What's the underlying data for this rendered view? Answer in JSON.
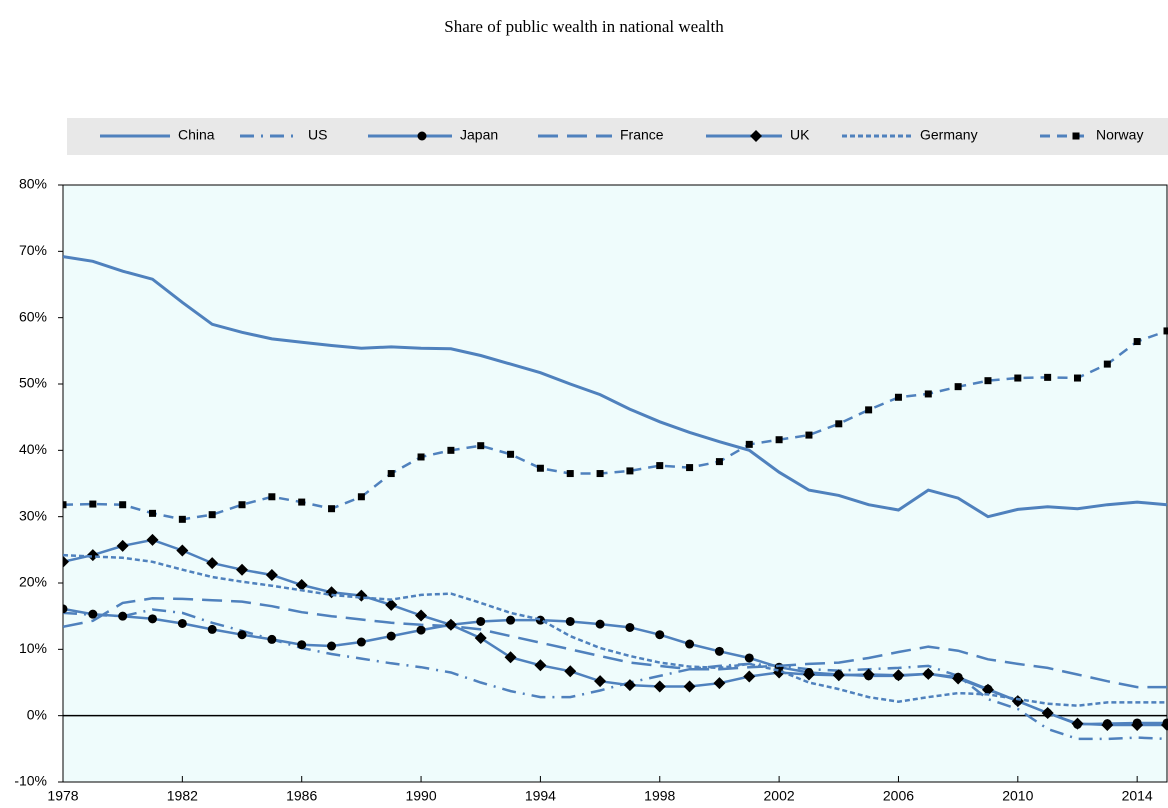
{
  "chart_data": {
    "type": "line",
    "title": "Share of public wealth in national wealth",
    "x": [
      1978,
      1979,
      1980,
      1981,
      1982,
      1983,
      1984,
      1985,
      1986,
      1987,
      1988,
      1989,
      1990,
      1991,
      1992,
      1993,
      1994,
      1995,
      1996,
      1997,
      1998,
      1999,
      2000,
      2001,
      2002,
      2003,
      2004,
      2005,
      2006,
      2007,
      2008,
      2009,
      2010,
      2011,
      2012,
      2013,
      2014,
      2015
    ],
    "xlim": [
      1978,
      2015
    ],
    "xticks": [
      1978,
      1982,
      1986,
      1990,
      1994,
      1998,
      2002,
      2006,
      2010,
      2014
    ],
    "ylim": [
      -10,
      80
    ],
    "yticks": [
      {
        "value": -10,
        "label": "-10%"
      },
      {
        "value": 0,
        "label": "0%"
      },
      {
        "value": 10,
        "label": "10%"
      },
      {
        "value": 20,
        "label": "20%"
      },
      {
        "value": 30,
        "label": "30%"
      },
      {
        "value": 40,
        "label": "40%"
      },
      {
        "value": 50,
        "label": "50%"
      },
      {
        "value": 60,
        "label": "60%"
      },
      {
        "value": 70,
        "label": "70%"
      },
      {
        "value": 80,
        "label": "80%"
      }
    ],
    "legend": "top",
    "series": [
      {
        "name": "China",
        "color": "#4f81bd",
        "dash": "solid",
        "marker": "none",
        "values": [
          69.2,
          68.5,
          67,
          65.8,
          62.3,
          59,
          57.8,
          56.8,
          56.3,
          55.8,
          55.4,
          55.6,
          55.4,
          55.3,
          54.3,
          53,
          51.7,
          50,
          48.4,
          46.2,
          44.3,
          42.7,
          41.3,
          40,
          36.7,
          34,
          33.2,
          31.8,
          31,
          34,
          32.8,
          30,
          31.1,
          31.5,
          31.2,
          31.8,
          32.2,
          31.8
        ]
      },
      {
        "name": "US",
        "color": "#4f81bd",
        "dash": "dash-dot",
        "marker": "none",
        "values": [
          15.5,
          15.2,
          15,
          16,
          15.5,
          14,
          12.8,
          11.5,
          10.2,
          9.3,
          8.6,
          7.9,
          7.3,
          6.5,
          5,
          3.7,
          2.8,
          2.8,
          3.8,
          5,
          6,
          7,
          7.5,
          7.8,
          7.5,
          7,
          6.8,
          7,
          7.2,
          7.5,
          6,
          2.5,
          1,
          -2,
          -3.5,
          -3.5,
          -3.3,
          -3.5
        ]
      },
      {
        "name": "Japan",
        "color": "#4f81bd",
        "dash": "solid",
        "marker": "circle",
        "values": [
          16.1,
          15.3,
          15,
          14.6,
          13.9,
          13,
          12.2,
          11.5,
          10.7,
          10.5,
          11.1,
          12,
          12.9,
          13.7,
          14.2,
          14.4,
          14.4,
          14.2,
          13.8,
          13.3,
          12.2,
          10.8,
          9.7,
          8.7,
          7.3,
          6.5,
          6.2,
          6,
          6,
          6.3,
          5.8,
          4,
          2.2,
          0.4,
          -1.3,
          -1.2,
          -1.1,
          -1.1
        ]
      },
      {
        "name": "France",
        "color": "#4f81bd",
        "dash": "long-dash",
        "marker": "none",
        "values": [
          13.4,
          14.3,
          17,
          17.7,
          17.6,
          17.4,
          17.2,
          16.5,
          15.6,
          15,
          14.5,
          14,
          13.7,
          13.5,
          13,
          12,
          11,
          10,
          9,
          8,
          7.5,
          7,
          7,
          7.3,
          7.5,
          7.8,
          8,
          8.7,
          9.6,
          10.4,
          9.8,
          8.5,
          7.8,
          7.2,
          6.2,
          5.2,
          4.3,
          4.3
        ]
      },
      {
        "name": "UK",
        "color": "#4f81bd",
        "dash": "solid",
        "marker": "diamond",
        "values": [
          23.2,
          24.2,
          25.6,
          26.5,
          24.9,
          23,
          22,
          21.2,
          19.7,
          18.6,
          18.1,
          16.7,
          15.1,
          13.7,
          11.7,
          8.8,
          7.6,
          6.7,
          5.2,
          4.6,
          4.4,
          4.4,
          4.9,
          5.9,
          6.5,
          6.2,
          6.1,
          6.2,
          6.1,
          6.3,
          5.6,
          3.9,
          2.2,
          0.4,
          -1.2,
          -1.4,
          -1.4,
          -1.4
        ]
      },
      {
        "name": "Germany",
        "color": "#4f81bd",
        "dash": "short-dash",
        "marker": "none",
        "values": [
          24.2,
          24,
          23.8,
          23.2,
          22,
          20.9,
          20.2,
          19.6,
          18.9,
          18.2,
          17.8,
          17.5,
          18.2,
          18.4,
          17,
          15.5,
          14.5,
          12,
          10.2,
          9,
          8,
          7.4,
          7.2,
          7.8,
          6.8,
          5,
          4,
          2.8,
          2.1,
          2.8,
          3.4,
          3.2,
          2.5,
          1.8,
          1.5,
          2,
          2,
          2
        ]
      },
      {
        "name": "Norway",
        "color": "#4f81bd",
        "dash": "dash",
        "marker": "square",
        "values": [
          31.8,
          31.9,
          31.8,
          30.5,
          29.6,
          30.3,
          31.8,
          33,
          32.2,
          31.2,
          33,
          36.5,
          39,
          40,
          40.7,
          39.4,
          37.3,
          36.5,
          36.5,
          36.9,
          37.7,
          37.4,
          38.3,
          40.9,
          41.6,
          42.3,
          44,
          46.1,
          48,
          48.5,
          49.6,
          50.5,
          50.9,
          51,
          50.9,
          53,
          56.4,
          58
        ]
      }
    ]
  }
}
